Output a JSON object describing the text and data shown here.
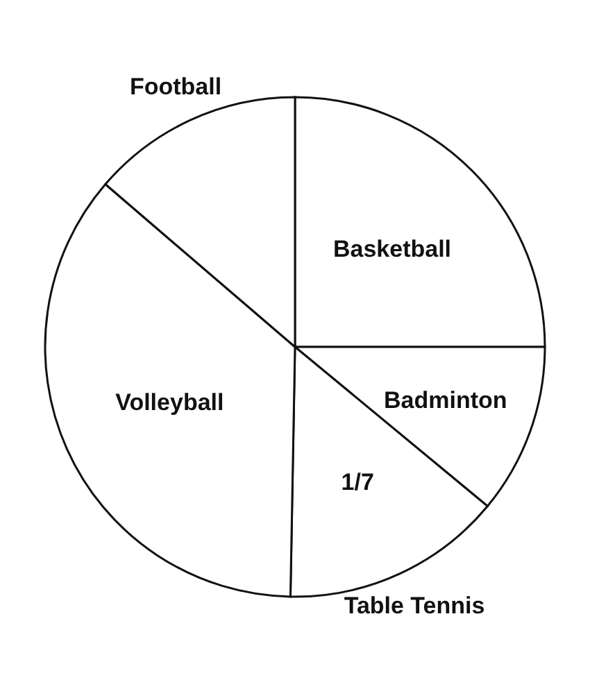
{
  "chart_data": {
    "type": "pie",
    "categories": [
      "Basketball",
      "Badminton",
      "Table Tennis",
      "Volleyball",
      "Football"
    ],
    "values": [
      25,
      11,
      14.29,
      36,
      13.71
    ],
    "colors": [
      "#ffffff",
      "#ffffff",
      "#ffffff",
      "#ffffff",
      "#ffffff"
    ],
    "value_labels": [
      null,
      null,
      "1/7",
      null,
      null
    ]
  }
}
